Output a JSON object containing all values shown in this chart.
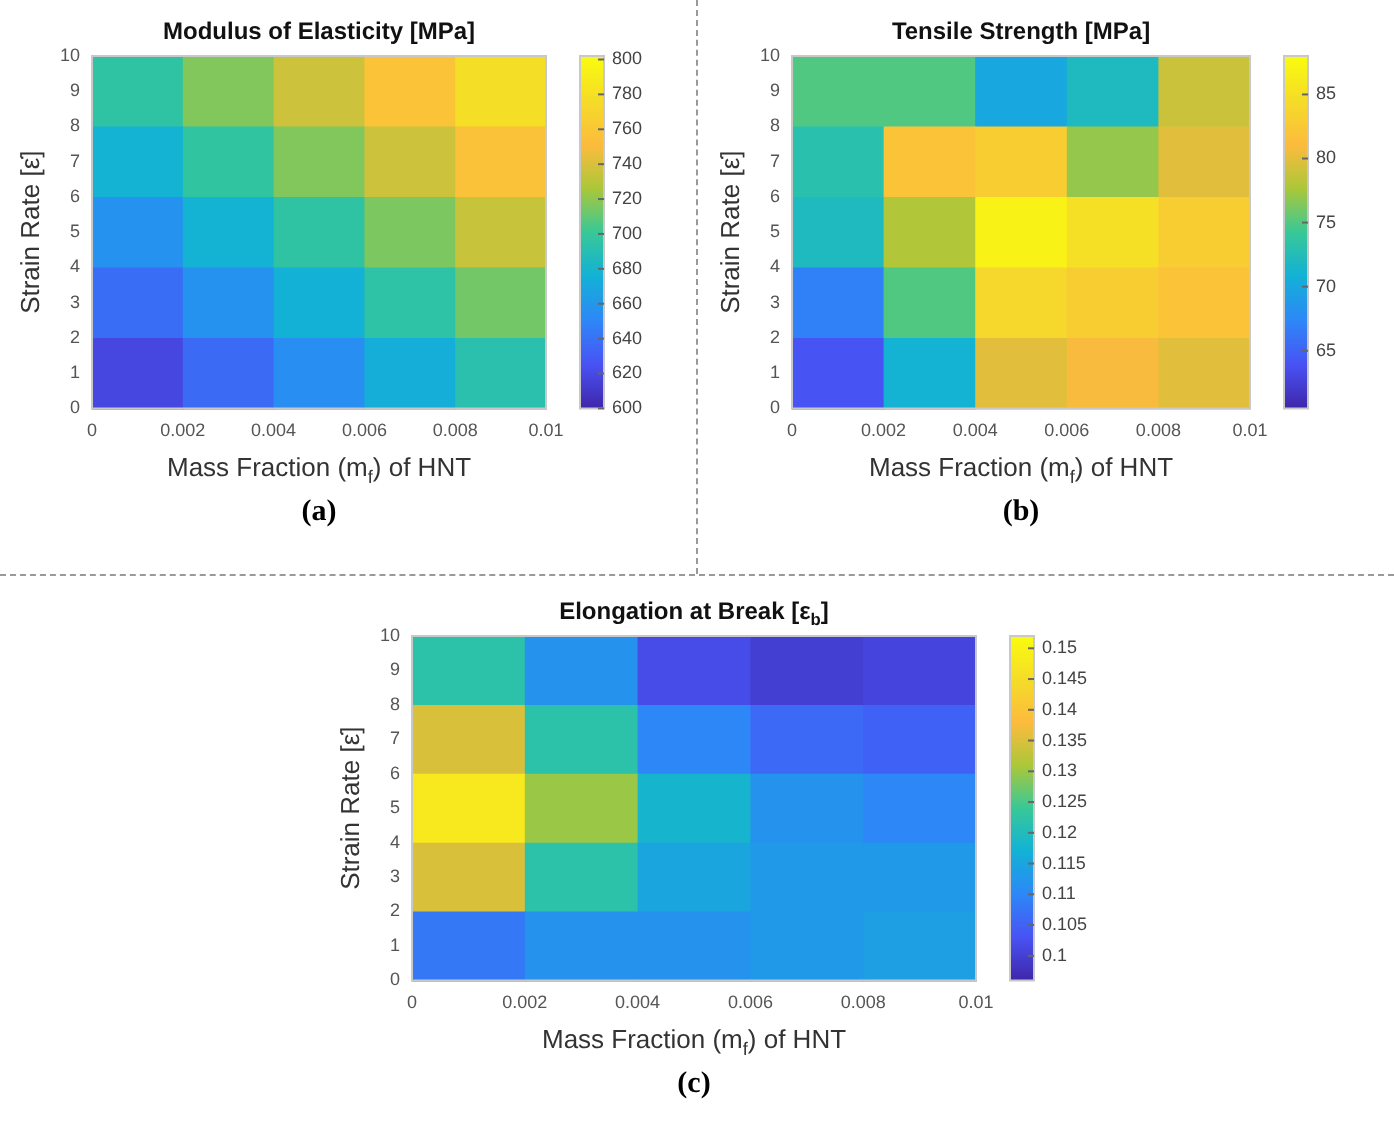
{
  "chart_data": [
    {
      "type": "heatmap",
      "title": "Modulus of Elasticity [MPa]",
      "xlabel": "Mass Fraction (m$_{f}$) of HNT",
      "ylabel": "Strain Rate [ε̇]",
      "annotations": [
        "(a)"
      ],
      "x": [
        0.001,
        0.003,
        0.005,
        0.007,
        0.009
      ],
      "y": [
        9,
        7,
        5,
        3,
        1
      ],
      "cells": [
        [
          696,
          717,
          737,
          758,
          779
        ],
        [
          677,
          697,
          717,
          737,
          757
        ],
        [
          657,
          677,
          696,
          716,
          735
        ],
        [
          638,
          657,
          676,
          695,
          714
        ],
        [
          619,
          637,
          655,
          674,
          692
        ]
      ],
      "clim": [
        600,
        802
      ],
      "cticks": [
        600,
        620,
        640,
        660,
        680,
        700,
        720,
        740,
        760,
        780,
        800
      ],
      "xlim": [
        0,
        0.01
      ],
      "ylim": [
        0,
        10
      ],
      "xticks": [
        0,
        0.002,
        0.004,
        0.006,
        0.008,
        0.01
      ],
      "yticks": [
        0,
        1,
        2,
        3,
        4,
        5,
        6,
        7,
        8,
        9,
        10
      ]
    },
    {
      "type": "heatmap",
      "title": "Tensile Strength [MPa]",
      "xlabel": "Mass Fraction (m$_{f}$) of HNT",
      "ylabel": "Strain Rate [ε̇]",
      "annotations": [
        "(b)"
      ],
      "x": [
        0.001,
        0.003,
        0.005,
        0.007,
        0.009
      ],
      "y": [
        9,
        7,
        5,
        3,
        1
      ],
      "cells": [
        [
          75,
          75,
          70,
          72,
          79
        ],
        [
          73,
          82,
          83,
          77,
          80
        ],
        [
          72,
          78,
          87,
          85,
          83
        ],
        [
          67,
          75,
          84,
          83,
          82
        ],
        [
          64,
          71,
          80,
          81,
          80
        ]
      ],
      "clim": [
        60.5,
        88
      ],
      "cticks": [
        65,
        70,
        75,
        80,
        85
      ],
      "xlim": [
        0,
        0.01
      ],
      "ylim": [
        0,
        10
      ],
      "xticks": [
        0,
        0.002,
        0.004,
        0.006,
        0.008,
        0.01
      ],
      "yticks": [
        0,
        1,
        2,
        3,
        4,
        5,
        6,
        7,
        8,
        9,
        10
      ]
    },
    {
      "type": "heatmap",
      "title": "Elongation at Break [ε$_{b}$]",
      "xlabel": "Mass Fraction (m$_{f}$) of HNT",
      "ylabel": "Strain Rate [ε̇]",
      "annotations": [
        "(c)"
      ],
      "x": [
        0.001,
        0.003,
        0.005,
        0.007,
        0.009
      ],
      "y": [
        9,
        7,
        5,
        3,
        1
      ],
      "cells": [
        [
          0.122,
          0.112,
          0.102,
          0.1,
          0.101
        ],
        [
          0.135,
          0.122,
          0.11,
          0.106,
          0.105
        ],
        [
          0.148,
          0.13,
          0.118,
          0.112,
          0.11
        ],
        [
          0.135,
          0.122,
          0.115,
          0.113,
          0.113
        ],
        [
          0.108,
          0.112,
          0.112,
          0.113,
          0.114
        ]
      ],
      "clim": [
        0.096,
        0.152
      ],
      "cticks": [
        0.1,
        0.105,
        0.11,
        0.115,
        0.12,
        0.125,
        0.13,
        0.135,
        0.14,
        0.145,
        0.15
      ],
      "xlim": [
        0,
        0.01
      ],
      "ylim": [
        0,
        10
      ],
      "xticks": [
        0,
        0.002,
        0.004,
        0.006,
        0.008,
        0.01
      ],
      "yticks": [
        0,
        1,
        2,
        3,
        4,
        5,
        6,
        7,
        8,
        9,
        10
      ]
    }
  ]
}
